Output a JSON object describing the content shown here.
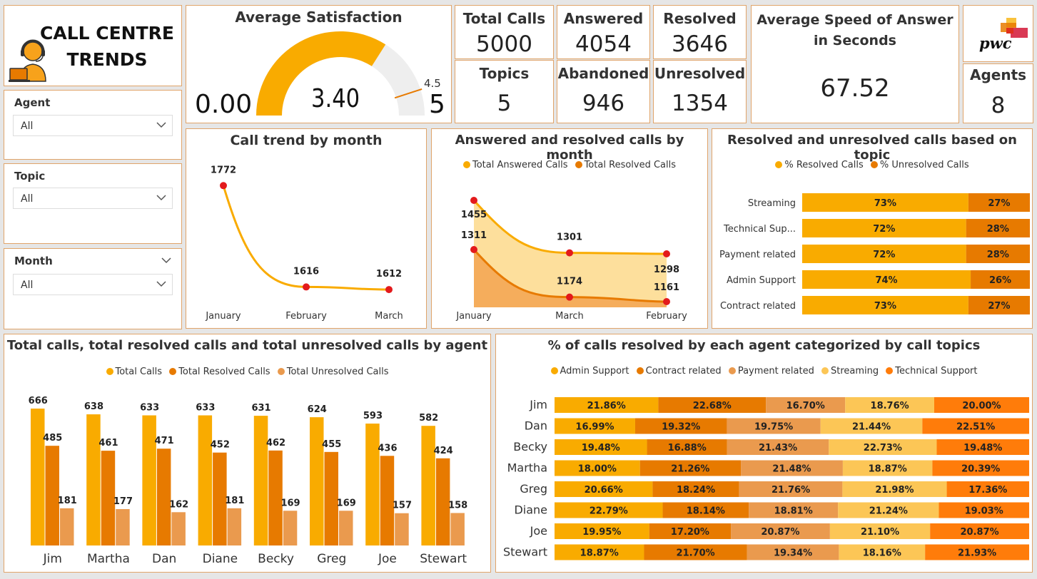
{
  "colors": {
    "gold": "#f9ab00",
    "orange": "#e77a00",
    "light": "#ea9a4e",
    "pale": "#fcc656",
    "deep": "#ff7c0a",
    "marker": "#e31a1c"
  },
  "header": {
    "title_line1": "CALL CENTRE",
    "title_line2": "TRENDS",
    "logo_icon": "call-agent-headset-icon"
  },
  "filters": [
    {
      "label": "Agent",
      "value": "All"
    },
    {
      "label": "Topic",
      "value": "All"
    },
    {
      "label": "Month",
      "value": "All"
    }
  ],
  "satisfaction": {
    "title": "Average Satisfaction",
    "min": "0.00",
    "value": "3.40",
    "target": "4.5",
    "max": "5",
    "value_num": 3.4,
    "target_num": 4.5,
    "max_num": 5
  },
  "kpis": {
    "total_calls": {
      "label": "Total Calls",
      "value": "5000"
    },
    "answered": {
      "label": "Answered",
      "value": "4054"
    },
    "resolved": {
      "label": "Resolved",
      "value": "3646"
    },
    "topics": {
      "label": "Topics",
      "value": "5"
    },
    "abandoned": {
      "label": "Abandoned",
      "value": "946"
    },
    "unresolved": {
      "label": "Unresolved",
      "value": "1354"
    },
    "speed": {
      "label": "Average Speed of Answer in Seconds",
      "value": "67.52"
    },
    "agents": {
      "label": "Agents",
      "value": "8"
    }
  },
  "pwc_logo": {
    "text": "pwc"
  },
  "charts": {
    "trend": {
      "title": "Call trend by month"
    },
    "answered_resolved": {
      "title": "Answered and resolved calls by month",
      "legend": [
        "Total Answered Calls",
        "Total Resolved Calls"
      ]
    },
    "topic": {
      "title": "Resolved and unresolved calls based on topic",
      "legend": [
        "% Resolved Calls",
        "% Unresolved Calls"
      ]
    },
    "agent": {
      "title": "Total calls, total resolved calls and total unresolved calls by agent",
      "legend": [
        "Total Calls",
        "Total Resolved Calls",
        "Total Unresolved Calls"
      ]
    },
    "agent_topic": {
      "title": "% of calls resolved by each agent categorized by call topics",
      "legend": [
        "Admin Support",
        "Contract related",
        "Payment related",
        "Streaming",
        "Technical Support"
      ]
    }
  },
  "chart_data": [
    {
      "type": "line",
      "title": "Call trend by month",
      "x": [
        "January",
        "February",
        "March"
      ],
      "values": [
        1772,
        1616,
        1612
      ]
    },
    {
      "type": "area",
      "title": "Answered and resolved calls by month",
      "x": [
        "January",
        "March",
        "February"
      ],
      "series": [
        {
          "name": "Total Answered Calls",
          "values": [
            1455,
            1301,
            1298
          ]
        },
        {
          "name": "Total Resolved Calls",
          "values": [
            1311,
            1174,
            1161
          ]
        }
      ]
    },
    {
      "type": "bar",
      "title": "Resolved and unresolved calls based on topic",
      "stacked": true,
      "orientation": "horizontal",
      "categories": [
        "Streaming",
        "Technical Sup...",
        "Payment related",
        "Admin Support",
        "Contract related"
      ],
      "series": [
        {
          "name": "% Resolved Calls",
          "values": [
            73,
            72,
            72,
            74,
            73
          ]
        },
        {
          "name": "% Unresolved Calls",
          "values": [
            27,
            28,
            28,
            26,
            27
          ]
        }
      ]
    },
    {
      "type": "bar",
      "title": "Total calls, total resolved calls and total unresolved calls by agent",
      "categories": [
        "Jim",
        "Martha",
        "Dan",
        "Diane",
        "Becky",
        "Greg",
        "Joe",
        "Stewart"
      ],
      "series": [
        {
          "name": "Total Calls",
          "values": [
            666,
            638,
            633,
            633,
            631,
            624,
            593,
            582
          ]
        },
        {
          "name": "Total Resolved Calls",
          "values": [
            485,
            461,
            471,
            452,
            462,
            455,
            436,
            424
          ]
        },
        {
          "name": "Total Unresolved Calls",
          "values": [
            181,
            177,
            162,
            181,
            169,
            169,
            157,
            158
          ]
        }
      ]
    },
    {
      "type": "bar",
      "title": "% of calls resolved by each agent categorized by call topics",
      "stacked": true,
      "orientation": "horizontal",
      "categories": [
        "Jim",
        "Dan",
        "Becky",
        "Martha",
        "Greg",
        "Diane",
        "Joe",
        "Stewart"
      ],
      "series": [
        {
          "name": "Admin Support",
          "values": [
            "21.86%",
            "16.99%",
            "19.48%",
            "18.00%",
            "20.66%",
            "22.79%",
            "19.95%",
            "18.87%"
          ]
        },
        {
          "name": "Contract related",
          "values": [
            "22.68%",
            "19.32%",
            "16.88%",
            "21.26%",
            "18.24%",
            "18.14%",
            "17.20%",
            "21.70%"
          ]
        },
        {
          "name": "Payment related",
          "values": [
            "16.70%",
            "19.75%",
            "21.43%",
            "21.48%",
            "21.76%",
            "18.81%",
            "20.87%",
            "19.34%"
          ]
        },
        {
          "name": "Streaming",
          "values": [
            "18.76%",
            "21.44%",
            "22.73%",
            "18.87%",
            "21.98%",
            "21.24%",
            "21.10%",
            "18.16%"
          ]
        },
        {
          "name": "Technical Support",
          "values": [
            "20.00%",
            "22.51%",
            "19.48%",
            "20.39%",
            "17.36%",
            "19.03%",
            "20.87%",
            "21.93%"
          ]
        }
      ]
    }
  ]
}
